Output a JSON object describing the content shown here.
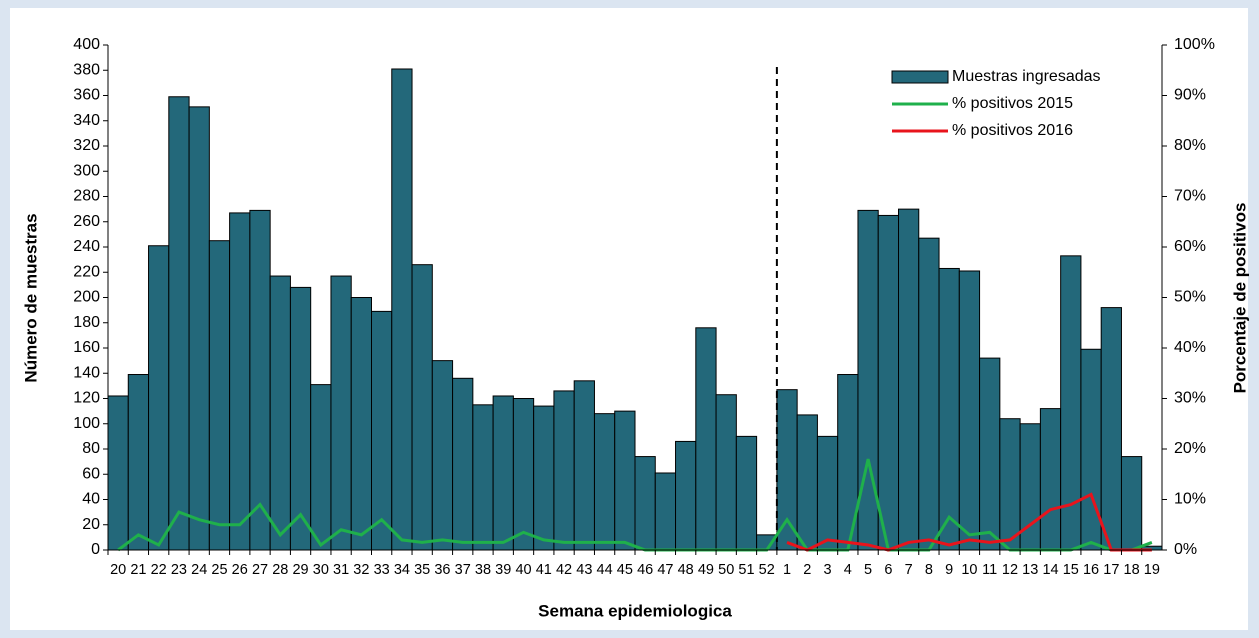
{
  "chart_data": {
    "type": "bar",
    "categories": [
      "20",
      "21",
      "22",
      "23",
      "24",
      "25",
      "26",
      "27",
      "28",
      "29",
      "30",
      "31",
      "32",
      "33",
      "34",
      "35",
      "36",
      "37",
      "38",
      "39",
      "40",
      "41",
      "42",
      "43",
      "44",
      "45",
      "46",
      "47",
      "48",
      "49",
      "50",
      "51",
      "52",
      "1",
      "2",
      "3",
      "4",
      "5",
      "6",
      "7",
      "8",
      "9",
      "10",
      "11",
      "12",
      "13",
      "14",
      "15",
      "16",
      "17",
      "18",
      "19"
    ],
    "series": [
      {
        "name": "Muestras ingresadas",
        "color": "#23687a",
        "type": "bar",
        "values": [
          122,
          139,
          241,
          359,
          351,
          245,
          267,
          269,
          217,
          208,
          131,
          217,
          200,
          189,
          381,
          226,
          150,
          136,
          115,
          122,
          120,
          114,
          126,
          134,
          108,
          110,
          74,
          61,
          86,
          176,
          123,
          90,
          12,
          127,
          107,
          90,
          139,
          269,
          265,
          270,
          247,
          223,
          221,
          152,
          104,
          100,
          112,
          233,
          159,
          192,
          74,
          3
        ]
      },
      {
        "name": "% positivos 2015",
        "color": "#1fb04b",
        "type": "line",
        "axis": "y2",
        "values": [
          0,
          3,
          1,
          7.5,
          6,
          5,
          5,
          9,
          3,
          7,
          1,
          4,
          3,
          6,
          2,
          1.5,
          2,
          1.5,
          1.5,
          1.5,
          3.5,
          2,
          1.5,
          1.5,
          1.5,
          1.5,
          0,
          0,
          0,
          0,
          0,
          0,
          0,
          6,
          0,
          0,
          0,
          18,
          0,
          0,
          0,
          6.5,
          3,
          3.5,
          0,
          0,
          0,
          0,
          1.5,
          0,
          0,
          1.5
        ]
      },
      {
        "name": "% positivos 2016",
        "color": "#e8141c",
        "type": "line",
        "axis": "y2",
        "values": [
          null,
          null,
          null,
          null,
          null,
          null,
          null,
          null,
          null,
          null,
          null,
          null,
          null,
          null,
          null,
          null,
          null,
          null,
          null,
          null,
          null,
          null,
          null,
          null,
          null,
          null,
          null,
          null,
          null,
          null,
          null,
          null,
          null,
          1.5,
          0,
          2,
          1.5,
          1,
          0,
          1.5,
          2,
          1,
          2,
          1.5,
          2,
          5,
          8,
          9,
          11,
          0,
          0,
          0
        ]
      }
    ],
    "ylabel": "Número de muestras",
    "y2label": "Porcentaje de positivos",
    "xlabel": "Semana epidemiologica",
    "ylim": [
      0,
      400
    ],
    "yticks": [
      0,
      20,
      40,
      60,
      80,
      100,
      120,
      140,
      160,
      180,
      200,
      220,
      240,
      260,
      280,
      300,
      320,
      340,
      360,
      380,
      400
    ],
    "y2lim": [
      0,
      100
    ],
    "y2ticks": [
      {
        "value": 0,
        "label": "0%"
      },
      {
        "value": 10,
        "label": "10%"
      },
      {
        "value": 20,
        "label": "20%"
      },
      {
        "value": 30,
        "label": "30%"
      },
      {
        "value": 40,
        "label": "40%"
      },
      {
        "value": 50,
        "label": "50%"
      },
      {
        "value": 60,
        "label": "60%"
      },
      {
        "value": 70,
        "label": "70%"
      },
      {
        "value": 80,
        "label": "80%"
      },
      {
        "value": 90,
        "label": "90%"
      },
      {
        "value": 100,
        "label": "100%"
      }
    ],
    "legend": "upper right",
    "grid": false
  }
}
